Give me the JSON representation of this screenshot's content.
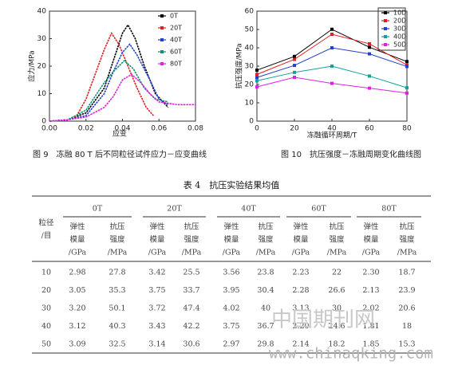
{
  "chart_data": [
    {
      "type": "line",
      "caption": "图 9　冻融 80 T 后不同粒径试件应力－应变曲线",
      "xlabel": "应变",
      "ylabel": "应力/MPa",
      "xlim": [
        0,
        0.08
      ],
      "xticks": [
        {
          "value": 0,
          "label": "0.00"
        },
        {
          "value": 0.02,
          "label": "0.02"
        },
        {
          "value": 0.04,
          "label": "0.04"
        },
        {
          "value": 0.06,
          "label": "0.06"
        },
        {
          "value": 0.08,
          "label": "0.08"
        }
      ],
      "ylim": [
        0,
        40
      ],
      "yticks": [
        0,
        10,
        20,
        30,
        40
      ],
      "legend": "upper right",
      "series": [
        {
          "name": "0T",
          "color": "#000000",
          "x": [
            0,
            0.01,
            0.02,
            0.03,
            0.035,
            0.04,
            0.043,
            0.047,
            0.052,
            0.058,
            0.065
          ],
          "values": [
            0,
            0.5,
            3,
            12,
            22,
            32,
            35,
            30,
            20,
            10,
            5
          ]
        },
        {
          "name": "20T",
          "color": "#e02020",
          "x": [
            0,
            0.01,
            0.015,
            0.02,
            0.025,
            0.03,
            0.034,
            0.038,
            0.043,
            0.048,
            0.053,
            0.057
          ],
          "values": [
            0,
            0.5,
            2,
            8,
            17,
            26,
            32,
            28,
            20,
            12,
            5,
            2
          ]
        },
        {
          "name": "40T",
          "color": "#2040d0",
          "x": [
            0,
            0.01,
            0.02,
            0.03,
            0.035,
            0.04,
            0.044,
            0.048,
            0.055,
            0.06,
            0.065
          ],
          "values": [
            0,
            0.5,
            2,
            10,
            18,
            25,
            28,
            24,
            15,
            8,
            6
          ]
        },
        {
          "name": "60T",
          "color": "#109070",
          "x": [
            0,
            0.01,
            0.02,
            0.025,
            0.03,
            0.035,
            0.041,
            0.046,
            0.052,
            0.058,
            0.065
          ],
          "values": [
            0,
            0.5,
            4,
            9,
            14,
            18,
            22,
            19,
            12,
            8,
            7
          ]
        },
        {
          "name": "80T",
          "color": "#e020e0",
          "x": [
            0,
            0.01,
            0.02,
            0.03,
            0.035,
            0.04,
            0.045,
            0.05,
            0.055,
            0.06,
            0.07,
            0.08
          ],
          "values": [
            0,
            0.5,
            1.5,
            5,
            9,
            15,
            17,
            14,
            10,
            7,
            6,
            6
          ]
        }
      ]
    },
    {
      "type": "line",
      "caption": "图 10　抗压强度－冻融周期变化曲线图",
      "xlabel": "冻融循环周期/T",
      "ylabel": "抗压强度/MPa",
      "x": [
        0,
        20,
        40,
        60,
        80
      ],
      "xlim": [
        0,
        80
      ],
      "xticks": [
        0,
        20,
        40,
        60,
        80
      ],
      "ylim": [
        0,
        60
      ],
      "yticks": [
        0,
        10,
        20,
        30,
        40,
        50,
        60
      ],
      "legend": "upper right",
      "series": [
        {
          "name": "10D",
          "color": "#000000",
          "values": [
            27.8,
            35.3,
            50.1,
            40.3,
            32.5
          ]
        },
        {
          "name": "20D",
          "color": "#e02020",
          "values": [
            25.5,
            33.7,
            47.4,
            42.2,
            30.6
          ]
        },
        {
          "name": "30D",
          "color": "#2040d0",
          "values": [
            23.8,
            30.4,
            40,
            36.7,
            29.8
          ]
        },
        {
          "name": "40D",
          "color": "#10a0a0",
          "values": [
            22,
            26.6,
            30,
            24.6,
            18.2
          ]
        },
        {
          "name": "50D",
          "color": "#e020e0",
          "values": [
            18.7,
            23.9,
            20.6,
            18,
            15.3
          ]
        }
      ]
    }
  ],
  "table": {
    "title": "表 4　抗压实验结果均值",
    "row_header": [
      "粒径",
      "/目"
    ],
    "groups": [
      "0T",
      "20T",
      "40T",
      "60T",
      "80T"
    ],
    "subheaders": [
      [
        "弹性",
        "模量",
        "/GPa"
      ],
      [
        "抗压",
        "强度",
        "/MPa"
      ]
    ],
    "rows": [
      [
        "10",
        "2.98",
        "27.8",
        "3.42",
        "25.5",
        "3.56",
        "23.8",
        "2.23",
        "22",
        "2.30",
        "18.7"
      ],
      [
        "20",
        "3.05",
        "35.3",
        "3.75",
        "33.7",
        "3.95",
        "30.4",
        "2.28",
        "26.6",
        "2.13",
        "23.9"
      ],
      [
        "30",
        "3.20",
        "50.1",
        "3.72",
        "47.4",
        "4.02",
        "40",
        "3.13",
        "30",
        "2.02",
        "20.6"
      ],
      [
        "40",
        "3.12",
        "40.3",
        "3.43",
        "42.2",
        "3.75",
        "36.7",
        "2.20",
        "24.6",
        "1.81",
        "18"
      ],
      [
        "50",
        "3.09",
        "32.5",
        "3.14",
        "30.6",
        "2.97",
        "29.8",
        "2.14",
        "18.2",
        "1.85",
        "15.3"
      ]
    ]
  },
  "watermark": {
    "brand": "中国期刊网",
    "url": "www.chinaqking.com"
  }
}
